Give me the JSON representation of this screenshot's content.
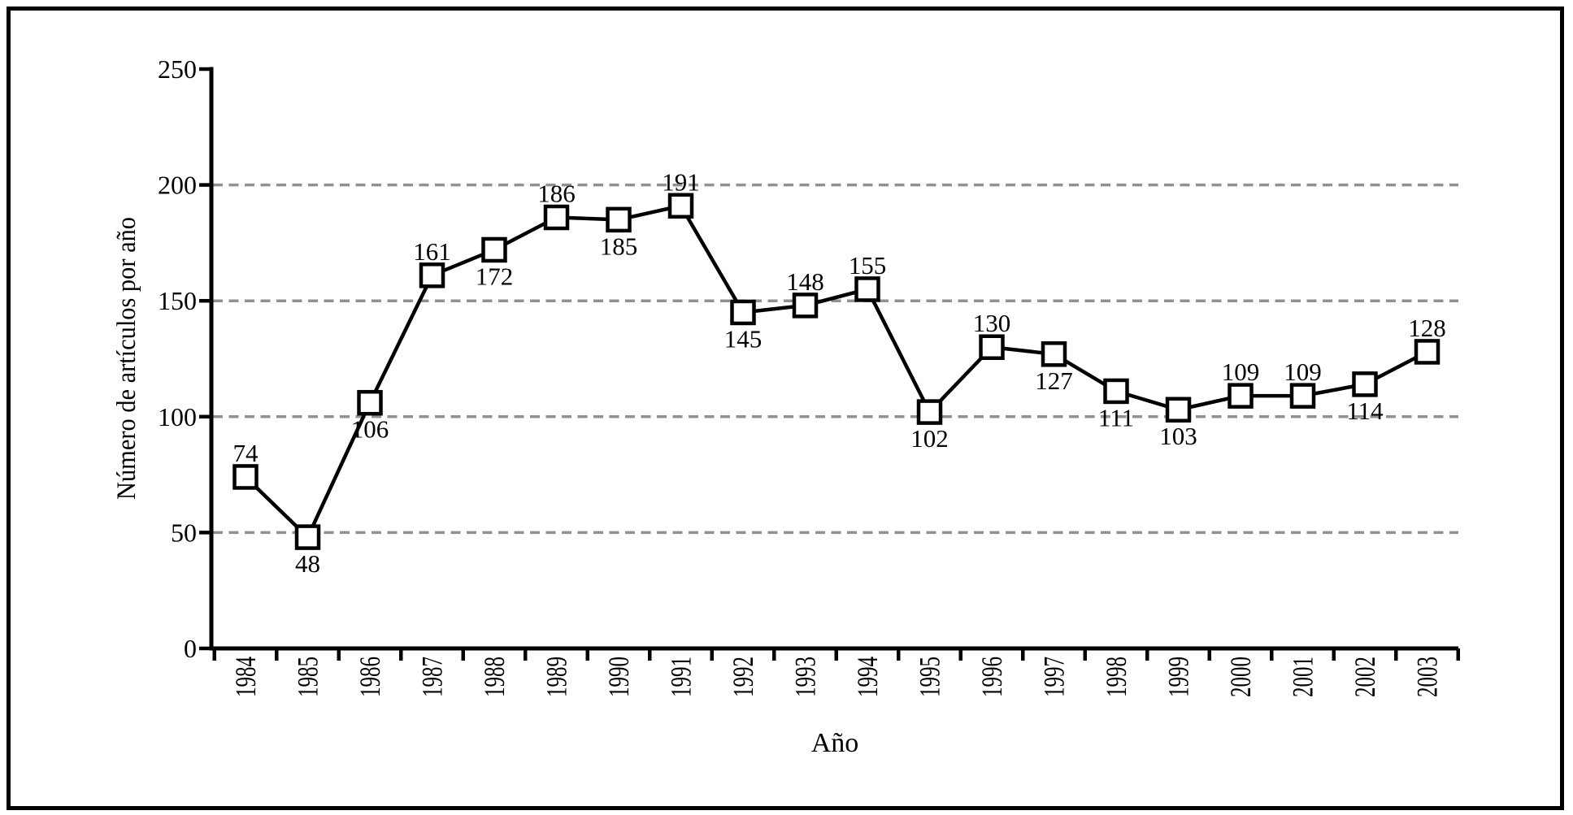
{
  "chart_data": {
    "type": "line",
    "title": "",
    "xlabel": "Año",
    "ylabel": "Número de artículos por año",
    "categories": [
      "1984",
      "1985",
      "1986",
      "1987",
      "1988",
      "1989",
      "1990",
      "1991",
      "1992",
      "1993",
      "1994",
      "1995",
      "1996",
      "1997",
      "1998",
      "1999",
      "2000",
      "2001",
      "2002",
      "2003"
    ],
    "values": [
      74,
      48,
      106,
      161,
      172,
      186,
      185,
      191,
      145,
      148,
      155,
      102,
      130,
      127,
      111,
      103,
      109,
      109,
      114,
      128
    ],
    "data_label_position": [
      "above",
      "below",
      "below",
      "above",
      "below",
      "above",
      "below",
      "above",
      "below",
      "above",
      "above",
      "below",
      "above",
      "below",
      "below",
      "below",
      "above",
      "above",
      "below",
      "above"
    ],
    "ylim": [
      0,
      250
    ],
    "yticks": [
      0,
      50,
      100,
      150,
      200,
      250
    ],
    "gridlines_at": [
      50,
      100,
      150,
      200
    ],
    "grid_style": "horizontal-dashed",
    "legend_position": "none",
    "marker": "square",
    "marker_fill": "#ffffff",
    "line_color": "#000000",
    "grid_color": "#919191",
    "text_color": "#000000",
    "frame_color": "#000000",
    "background_color": "#ffffff"
  }
}
